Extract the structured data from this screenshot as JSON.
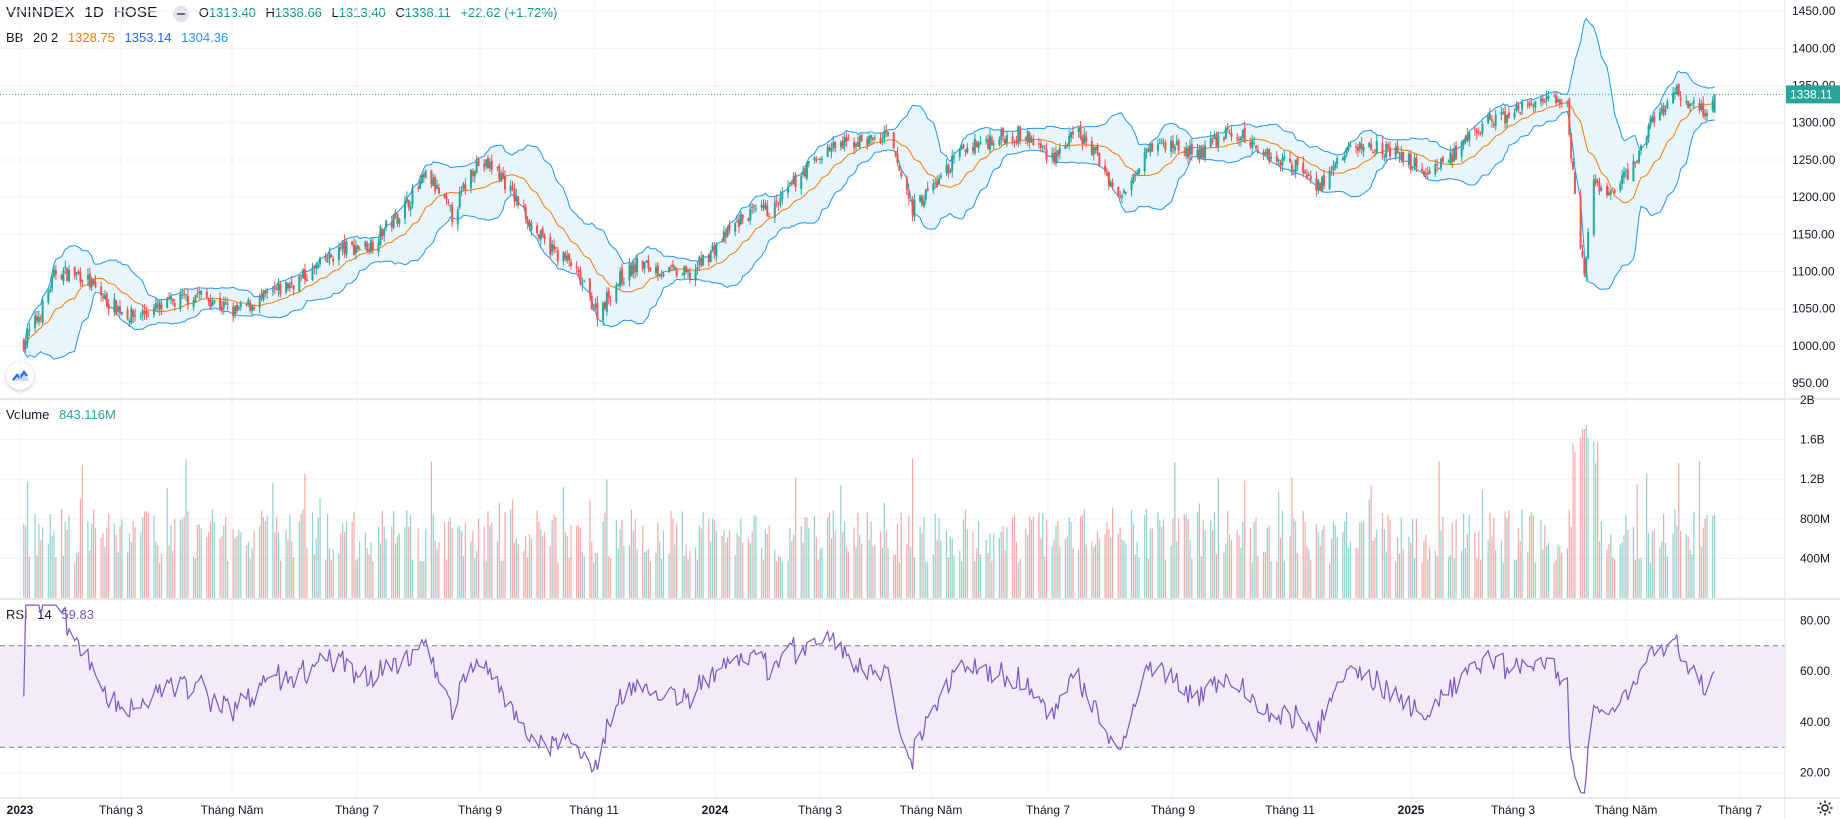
{
  "header": {
    "symbol": "VNINDEX",
    "interval": "1D",
    "exchange": "HOSE",
    "open_label": "O",
    "open": "1313.40",
    "high_label": "H",
    "high": "1338.66",
    "low_label": "L",
    "low": "1313.40",
    "close_label": "C",
    "close": "1338.11",
    "change": "+22.62 (+1.72%)"
  },
  "bb": {
    "label": "BB",
    "params": "20 2",
    "basis": "1328.75",
    "upper": "1353.14",
    "lower": "1304.36"
  },
  "volume": {
    "label": "Volume",
    "value": "843.116M"
  },
  "rsi": {
    "label": "RSI",
    "params": "14",
    "value": "59.83"
  },
  "price_tag": "1338.11",
  "price_axis": [
    "1450.00",
    "1400.00",
    "1350.00",
    "1300.00",
    "1250.00",
    "1200.00",
    "1150.00",
    "1100.00",
    "1050.00",
    "1000.00",
    "950.00"
  ],
  "volume_axis": [
    "2B",
    "1.6B",
    "1.2B",
    "800M",
    "400M"
  ],
  "rsi_axis": [
    "80.00",
    "60.00",
    "40.00",
    "20.00"
  ],
  "time_axis": [
    {
      "label": "2023",
      "strong": true
    },
    {
      "label": "Tháng 3",
      "strong": false
    },
    {
      "label": "Tháng Năm",
      "strong": false
    },
    {
      "label": "Tháng 7",
      "strong": false
    },
    {
      "label": "Tháng 9",
      "strong": false
    },
    {
      "label": "Tháng 11",
      "strong": false
    },
    {
      "label": "2024",
      "strong": true
    },
    {
      "label": "Tháng 3",
      "strong": false
    },
    {
      "label": "Tháng Năm",
      "strong": false
    },
    {
      "label": "Tháng 7",
      "strong": false
    },
    {
      "label": "Tháng 9",
      "strong": false
    },
    {
      "label": "Tháng 11",
      "strong": false
    },
    {
      "label": "2025",
      "strong": true
    },
    {
      "label": "Tháng 3",
      "strong": false
    },
    {
      "label": "Tháng Năm",
      "strong": false
    },
    {
      "label": "Tháng 7",
      "strong": false
    }
  ],
  "colors": {
    "up": "#26a69a",
    "down": "#ef5350",
    "bb_band": "#2196f3",
    "bb_basis": "#f57c00",
    "bb_fill": "#e3f2fd",
    "rsi_line": "#7e57c2",
    "rsi_fill": "#ede7f6",
    "grid": "#f0f3fa"
  },
  "chart_data": {
    "type": "candlestick",
    "price_ylim": [
      930,
      1465
    ],
    "volume_ylim": [
      0,
      2000000000
    ],
    "rsi_ylim": [
      10,
      88
    ],
    "rsi_bands": [
      30,
      70
    ],
    "x_range": [
      "2023-01",
      "2025-07"
    ],
    "close_waypoints": [
      [
        "2023-01-03",
        1005
      ],
      [
        "2023-01-12",
        1045
      ],
      [
        "2023-01-20",
        1100
      ],
      [
        "2023-02-03",
        1095
      ],
      [
        "2023-02-16",
        1060
      ],
      [
        "2023-03-01",
        1040
      ],
      [
        "2023-03-15",
        1050
      ],
      [
        "2023-04-05",
        1070
      ],
      [
        "2023-04-25",
        1045
      ],
      [
        "2023-05-15",
        1070
      ],
      [
        "2023-06-05",
        1100
      ],
      [
        "2023-06-20",
        1130
      ],
      [
        "2023-07-05",
        1135
      ],
      [
        "2023-07-20",
        1175
      ],
      [
        "2023-08-05",
        1230
      ],
      [
        "2023-08-18",
        1175
      ],
      [
        "2023-08-30",
        1245
      ],
      [
        "2023-09-10",
        1240
      ],
      [
        "2023-09-20",
        1200
      ],
      [
        "2023-10-05",
        1140
      ],
      [
        "2023-10-20",
        1110
      ],
      [
        "2023-11-03",
        1045
      ],
      [
        "2023-11-15",
        1090
      ],
      [
        "2023-11-25",
        1110
      ],
      [
        "2023-12-10",
        1100
      ],
      [
        "2023-12-22",
        1095
      ],
      [
        "2024-01-05",
        1135
      ],
      [
        "2024-01-20",
        1175
      ],
      [
        "2024-02-05",
        1185
      ],
      [
        "2024-02-20",
        1235
      ],
      [
        "2024-03-05",
        1265
      ],
      [
        "2024-03-20",
        1275
      ],
      [
        "2024-04-05",
        1280
      ],
      [
        "2024-04-18",
        1185
      ],
      [
        "2024-05-01",
        1220
      ],
      [
        "2024-05-15",
        1265
      ],
      [
        "2024-06-01",
        1280
      ],
      [
        "2024-06-15",
        1285
      ],
      [
        "2024-07-01",
        1255
      ],
      [
        "2024-07-15",
        1285
      ],
      [
        "2024-07-25",
        1255
      ],
      [
        "2024-08-06",
        1195
      ],
      [
        "2024-08-20",
        1270
      ],
      [
        "2024-09-05",
        1270
      ],
      [
        "2024-09-15",
        1255
      ],
      [
        "2024-09-30",
        1285
      ],
      [
        "2024-10-10",
        1280
      ],
      [
        "2024-10-25",
        1255
      ],
      [
        "2024-11-10",
        1240
      ],
      [
        "2024-11-20",
        1215
      ],
      [
        "2024-12-05",
        1265
      ],
      [
        "2024-12-20",
        1270
      ],
      [
        "2025-01-05",
        1250
      ],
      [
        "2025-01-15",
        1235
      ],
      [
        "2025-02-01",
        1260
      ],
      [
        "2025-02-15",
        1300
      ],
      [
        "2025-03-01",
        1310
      ],
      [
        "2025-03-15",
        1330
      ],
      [
        "2025-03-31",
        1320
      ],
      [
        "2025-04-03",
        1230
      ],
      [
        "2025-04-09",
        1095
      ],
      [
        "2025-04-14",
        1215
      ],
      [
        "2025-04-22",
        1205
      ],
      [
        "2025-05-05",
        1240
      ],
      [
        "2025-05-15",
        1305
      ],
      [
        "2025-05-28",
        1340
      ],
      [
        "2025-06-05",
        1325
      ],
      [
        "2025-06-12",
        1315
      ],
      [
        "2025-06-17",
        1338.11
      ]
    ],
    "rsi_last": 59.83,
    "volume_last": "843.116M"
  }
}
